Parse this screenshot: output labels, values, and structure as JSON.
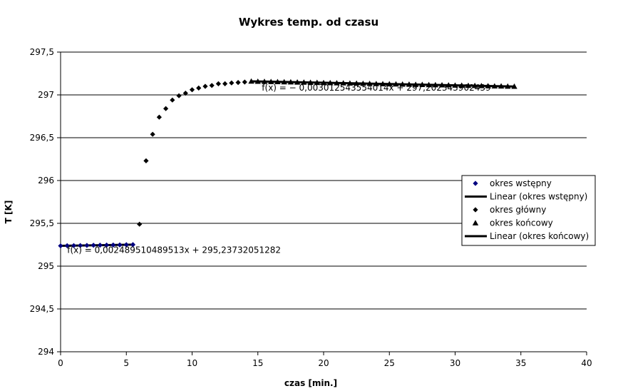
{
  "chart_data": {
    "type": "scatter",
    "title": "Wykres temp.  od czasu",
    "xlabel": "czas [min.]",
    "ylabel": "T [K]",
    "xlim": [
      0,
      40
    ],
    "ylim": [
      294,
      297.5
    ],
    "xticks": [
      0,
      5,
      10,
      15,
      20,
      25,
      30,
      35,
      40
    ],
    "yticks": [
      294,
      294.5,
      295,
      295.5,
      296,
      296.5,
      297,
      297.5
    ],
    "xtick_labels": [
      "0",
      "5",
      "10",
      "15",
      "20",
      "25",
      "30",
      "35",
      "40"
    ],
    "ytick_labels": [
      "294",
      "294,5",
      "295",
      "295,5",
      "296",
      "296,5",
      "297",
      "297,5"
    ],
    "grid": "horizontal",
    "legend_position": "right",
    "series": [
      {
        "name": "okres wstępny",
        "marker": "diamond",
        "color": "#000080",
        "x": [
          0,
          0.5,
          1,
          1.5,
          2,
          2.5,
          3,
          3.5,
          4,
          4.5,
          5,
          5.5
        ],
        "y": [
          295.237,
          295.239,
          295.24,
          295.241,
          295.242,
          295.244,
          295.245,
          295.246,
          295.247,
          295.248,
          295.25,
          295.251
        ]
      },
      {
        "name": "Linear (okres wstępny)",
        "type": "trendline",
        "color": "#000000",
        "slope": 0.002489510489513,
        "intercept": 295.23732051282,
        "x_range": [
          0,
          5.5
        ]
      },
      {
        "name": "okres główny",
        "marker": "diamond",
        "color": "#000000",
        "x": [
          6,
          6.5,
          7,
          7.5,
          8,
          8.5,
          9,
          9.5,
          10,
          10.5,
          11,
          11.5,
          12,
          12.5,
          13,
          13.5,
          14
        ],
        "y": [
          295.49,
          296.23,
          296.54,
          296.74,
          296.84,
          296.94,
          296.99,
          297.02,
          297.06,
          297.08,
          297.1,
          297.11,
          297.13,
          297.13,
          297.14,
          297.145,
          297.15
        ]
      },
      {
        "name": "okres końcowy",
        "marker": "triangle",
        "color": "#000000",
        "x": [
          14.5,
          15,
          15.5,
          16,
          16.5,
          17,
          17.5,
          18,
          18.5,
          19,
          19.5,
          20,
          20.5,
          21,
          21.5,
          22,
          22.5,
          23,
          23.5,
          24,
          24.5,
          25,
          25.5,
          26,
          26.5,
          27,
          27.5,
          28,
          28.5,
          29,
          29.5,
          30,
          30.5,
          31,
          31.5,
          32,
          32.5,
          33,
          33.5,
          34,
          34.5
        ],
        "y": [
          297.159,
          297.157,
          297.156,
          297.154,
          297.153,
          297.151,
          297.15,
          297.148,
          297.147,
          297.145,
          297.144,
          297.142,
          297.141,
          297.139,
          297.138,
          297.136,
          297.135,
          297.133,
          297.132,
          297.13,
          297.129,
          297.127,
          297.126,
          297.124,
          297.123,
          297.121,
          297.12,
          297.118,
          297.117,
          297.115,
          297.114,
          297.112,
          297.111,
          297.109,
          297.108,
          297.106,
          297.105,
          297.103,
          297.102,
          297.1,
          297.099
        ]
      },
      {
        "name": "Linear (okres końcowy)",
        "type": "trendline",
        "color": "#000000",
        "slope": -0.003012543554014,
        "intercept": 297.20234390244,
        "x_range": [
          14.5,
          34.5
        ]
      }
    ],
    "annotations": [
      {
        "text": "f(x) = 0,002489510489513x + 295,23732051282",
        "x": 0.5,
        "y": 295.155
      },
      {
        "text": "f(x) = − 0,003012543554014x + 297,202343902439",
        "x": 15.3,
        "y": 297.05
      }
    ]
  }
}
